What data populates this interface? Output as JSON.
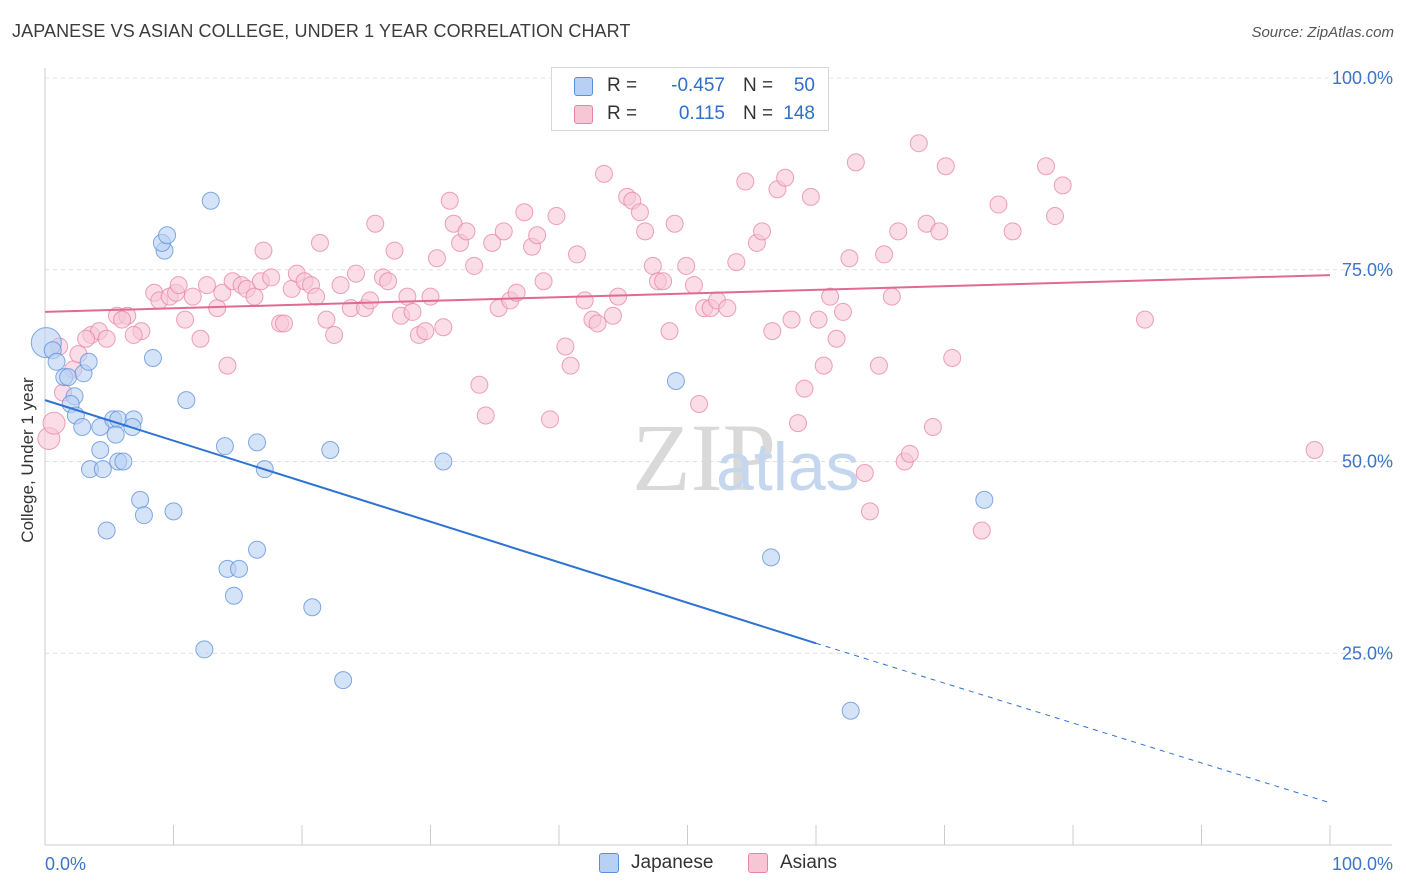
{
  "title": "JAPANESE VS ASIAN COLLEGE, UNDER 1 YEAR CORRELATION CHART",
  "source": "Source: ZipAtlas.com",
  "watermark": {
    "zip": "ZIP",
    "atlas": "atlas"
  },
  "legend": {
    "rows": [
      {
        "r_label": "R =",
        "r_value": "-0.457",
        "n_label": "N =",
        "n_value": "50",
        "color": "#5b8fd9",
        "fill": "#b8d0f3"
      },
      {
        "r_label": "R =",
        "r_value": "0.115",
        "n_label": "N =",
        "n_value": "148",
        "color": "#e883a6",
        "fill": "#f7c6d5"
      }
    ]
  },
  "bottom_legend": [
    {
      "label": "Japanese",
      "color": "#5b8fd9",
      "fill": "#b8d0f3"
    },
    {
      "label": "Asians",
      "color": "#e883a6",
      "fill": "#f7c6d5"
    }
  ],
  "chart_data": {
    "type": "scatter",
    "title": "JAPANESE VS ASIAN COLLEGE, UNDER 1 YEAR CORRELATION CHART",
    "xlabel": "",
    "ylabel": "College, Under 1 year",
    "xlim": [
      0,
      100
    ],
    "ylim": [
      0,
      100
    ],
    "x_ticks": [
      "0.0%",
      "100.0%"
    ],
    "y_ticks": [
      "100.0%",
      "75.0%",
      "50.0%",
      "25.0%"
    ],
    "grid": true,
    "legend_position": "top-center",
    "series": [
      {
        "name": "Japanese",
        "color": "#5b8fd9",
        "fill": "#b8d0f3",
        "points": [
          [
            0.1,
            65.5
          ],
          [
            0.6,
            64.5
          ],
          [
            0.9,
            63.0
          ],
          [
            1.5,
            61.0
          ],
          [
            1.8,
            61.0
          ],
          [
            2.3,
            58.5
          ],
          [
            2.0,
            57.5
          ],
          [
            2.4,
            56.0
          ],
          [
            3.0,
            61.5
          ],
          [
            3.4,
            63.0
          ],
          [
            2.9,
            54.5
          ],
          [
            4.3,
            54.5
          ],
          [
            5.3,
            55.5
          ],
          [
            5.7,
            55.5
          ],
          [
            6.9,
            55.5
          ],
          [
            6.8,
            54.5
          ],
          [
            5.5,
            53.5
          ],
          [
            4.3,
            51.5
          ],
          [
            3.5,
            49.0
          ],
          [
            4.5,
            49.0
          ],
          [
            5.7,
            50.0
          ],
          [
            6.1,
            50.0
          ],
          [
            12.9,
            84.0
          ],
          [
            9.3,
            77.5
          ],
          [
            9.1,
            78.5
          ],
          [
            9.5,
            79.5
          ],
          [
            8.4,
            63.5
          ],
          [
            11.0,
            58.0
          ],
          [
            14.0,
            52.0
          ],
          [
            16.5,
            52.5
          ],
          [
            22.2,
            51.5
          ],
          [
            17.1,
            49.0
          ],
          [
            7.4,
            45.0
          ],
          [
            7.7,
            43.0
          ],
          [
            10.0,
            43.5
          ],
          [
            4.8,
            41.0
          ],
          [
            16.5,
            38.5
          ],
          [
            14.2,
            36.0
          ],
          [
            15.1,
            36.0
          ],
          [
            14.7,
            32.5
          ],
          [
            20.8,
            31.0
          ],
          [
            12.4,
            25.5
          ],
          [
            23.2,
            21.5
          ],
          [
            31.0,
            50.0
          ],
          [
            49.1,
            60.5
          ],
          [
            56.5,
            37.5
          ],
          [
            62.7,
            17.5
          ],
          [
            73.1,
            45.0
          ]
        ],
        "trend": {
          "x0": 0,
          "y0": 58.0,
          "x1": 60,
          "y1": 26.3,
          "dashed_to_x": 100,
          "dashed_to_y": 5.5
        }
      },
      {
        "name": "Asians",
        "color": "#e883a6",
        "fill": "#f7c6d5",
        "points": [
          [
            0.3,
            53.0
          ],
          [
            0.7,
            55.0
          ],
          [
            1.4,
            59.0
          ],
          [
            2.2,
            62.0
          ],
          [
            2.6,
            64.0
          ],
          [
            3.6,
            66.5
          ],
          [
            4.2,
            67.0
          ],
          [
            3.2,
            66.0
          ],
          [
            4.8,
            66.0
          ],
          [
            5.6,
            69.0
          ],
          [
            6.4,
            69.0
          ],
          [
            6.0,
            68.5
          ],
          [
            7.5,
            67.0
          ],
          [
            6.9,
            66.5
          ],
          [
            8.5,
            72.0
          ],
          [
            8.9,
            71.0
          ],
          [
            9.7,
            71.5
          ],
          [
            10.2,
            72.0
          ],
          [
            10.4,
            73.0
          ],
          [
            10.9,
            68.5
          ],
          [
            11.5,
            71.5
          ],
          [
            12.1,
            66.0
          ],
          [
            12.6,
            73.0
          ],
          [
            13.4,
            70.0
          ],
          [
            13.8,
            72.0
          ],
          [
            14.2,
            62.5
          ],
          [
            14.6,
            73.5
          ],
          [
            15.3,
            73.0
          ],
          [
            15.7,
            72.5
          ],
          [
            16.3,
            71.5
          ],
          [
            16.8,
            73.5
          ],
          [
            17.0,
            77.5
          ],
          [
            17.6,
            74.0
          ],
          [
            18.3,
            68.0
          ],
          [
            18.6,
            68.0
          ],
          [
            19.2,
            72.5
          ],
          [
            19.6,
            74.5
          ],
          [
            20.2,
            73.5
          ],
          [
            20.7,
            73.0
          ],
          [
            21.1,
            71.5
          ],
          [
            21.4,
            78.5
          ],
          [
            21.9,
            68.5
          ],
          [
            22.5,
            66.5
          ],
          [
            23.0,
            73.0
          ],
          [
            23.8,
            70.0
          ],
          [
            24.2,
            74.5
          ],
          [
            24.9,
            70.0
          ],
          [
            25.3,
            71.0
          ],
          [
            25.7,
            81.0
          ],
          [
            26.3,
            74.0
          ],
          [
            26.7,
            73.5
          ],
          [
            27.2,
            77.5
          ],
          [
            27.7,
            69.0
          ],
          [
            28.2,
            71.5
          ],
          [
            28.6,
            69.5
          ],
          [
            29.1,
            66.5
          ],
          [
            29.6,
            67.0
          ],
          [
            30.0,
            71.5
          ],
          [
            30.5,
            76.5
          ],
          [
            31.0,
            67.5
          ],
          [
            31.5,
            84.0
          ],
          [
            31.8,
            81.0
          ],
          [
            32.3,
            78.5
          ],
          [
            32.8,
            80.0
          ],
          [
            33.4,
            75.5
          ],
          [
            33.8,
            60.0
          ],
          [
            34.3,
            56.0
          ],
          [
            34.8,
            78.5
          ],
          [
            35.3,
            70.0
          ],
          [
            35.7,
            80.0
          ],
          [
            36.2,
            71.0
          ],
          [
            36.7,
            72.0
          ],
          [
            37.3,
            82.5
          ],
          [
            37.9,
            78.0
          ],
          [
            38.3,
            79.5
          ],
          [
            38.8,
            73.5
          ],
          [
            39.3,
            55.5
          ],
          [
            39.8,
            82.0
          ],
          [
            40.5,
            65.0
          ],
          [
            40.9,
            62.5
          ],
          [
            41.4,
            77.0
          ],
          [
            42.0,
            71.0
          ],
          [
            42.6,
            68.5
          ],
          [
            43.0,
            68.0
          ],
          [
            43.5,
            87.5
          ],
          [
            44.2,
            69.0
          ],
          [
            44.6,
            71.5
          ],
          [
            45.3,
            84.5
          ],
          [
            45.7,
            84.0
          ],
          [
            46.3,
            82.5
          ],
          [
            46.7,
            80.0
          ],
          [
            47.3,
            75.5
          ],
          [
            47.7,
            73.5
          ],
          [
            48.1,
            73.5
          ],
          [
            48.6,
            67.0
          ],
          [
            49.0,
            81.0
          ],
          [
            49.9,
            75.5
          ],
          [
            50.5,
            73.0
          ],
          [
            50.9,
            57.5
          ],
          [
            51.3,
            70.0
          ],
          [
            51.8,
            70.0
          ],
          [
            52.3,
            71.0
          ],
          [
            53.1,
            70.0
          ],
          [
            53.8,
            76.0
          ],
          [
            54.5,
            86.5
          ],
          [
            55.4,
            78.5
          ],
          [
            55.8,
            80.0
          ],
          [
            56.6,
            67.0
          ],
          [
            57.0,
            85.5
          ],
          [
            57.6,
            87.0
          ],
          [
            58.1,
            68.5
          ],
          [
            58.6,
            55.0
          ],
          [
            59.1,
            59.5
          ],
          [
            59.6,
            84.5
          ],
          [
            60.2,
            68.5
          ],
          [
            60.6,
            62.5
          ],
          [
            61.1,
            71.5
          ],
          [
            61.6,
            66.0
          ],
          [
            62.1,
            69.5
          ],
          [
            62.6,
            76.5
          ],
          [
            63.1,
            89.0
          ],
          [
            63.8,
            48.5
          ],
          [
            64.2,
            43.5
          ],
          [
            64.9,
            62.5
          ],
          [
            65.3,
            77.0
          ],
          [
            65.9,
            71.5
          ],
          [
            66.4,
            80.0
          ],
          [
            66.9,
            50.0
          ],
          [
            67.3,
            51.0
          ],
          [
            68.0,
            91.5
          ],
          [
            68.6,
            81.0
          ],
          [
            69.1,
            54.5
          ],
          [
            69.6,
            80.0
          ],
          [
            70.1,
            88.5
          ],
          [
            70.6,
            63.5
          ],
          [
            72.9,
            41.0
          ],
          [
            74.2,
            83.5
          ],
          [
            75.3,
            80.0
          ],
          [
            77.9,
            88.5
          ],
          [
            78.6,
            82.0
          ],
          [
            79.2,
            86.0
          ],
          [
            85.6,
            68.5
          ],
          [
            98.8,
            51.5
          ],
          [
            1.1,
            65.0
          ]
        ],
        "trend": {
          "x0": 0,
          "y0": 69.5,
          "x1": 100,
          "y1": 74.3
        }
      }
    ]
  }
}
